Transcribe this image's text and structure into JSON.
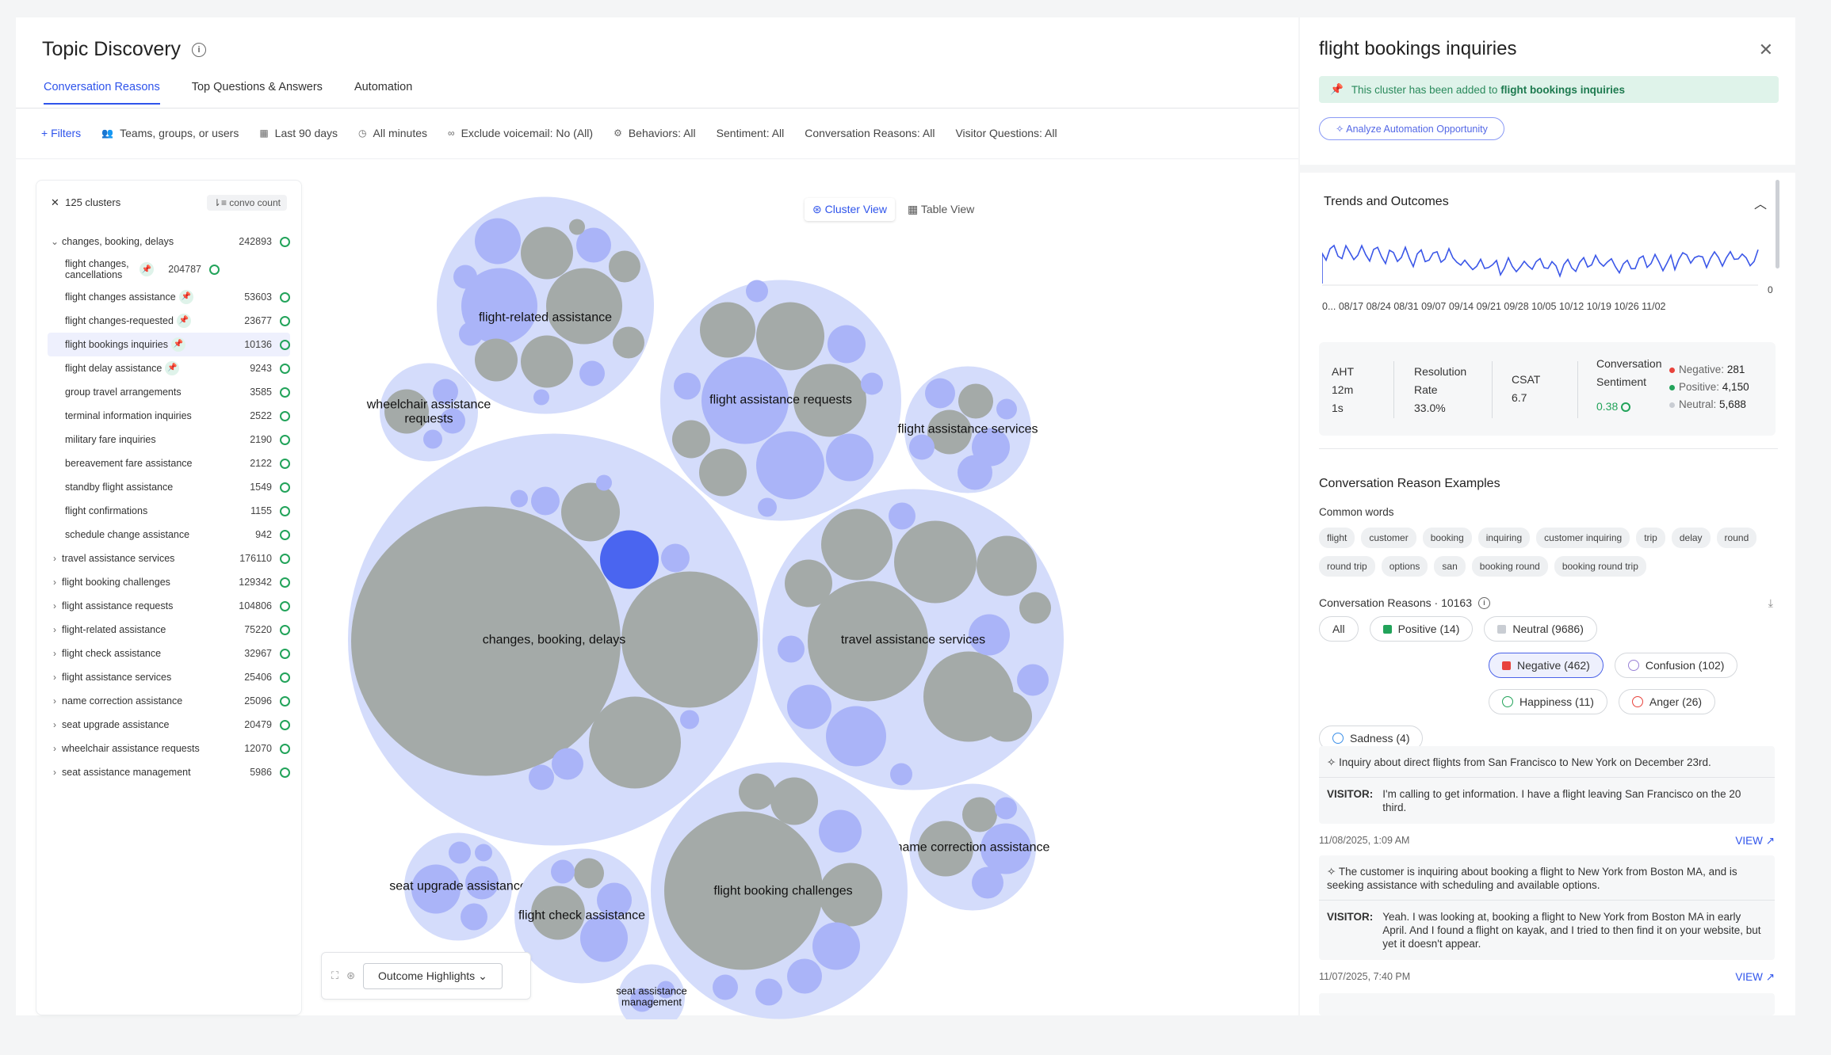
{
  "main": {
    "title": "Topic Discovery",
    "tabs": [
      "Conversation Reasons",
      "Top Questions & Answers",
      "Automation"
    ],
    "filters": {
      "add": "+ Filters",
      "teams": "Teams, groups, or users",
      "date": "Last 90 days",
      "minutes": "All minutes",
      "voicemail": "Exclude voicemail: No (All)",
      "behaviors": "Behaviors: All",
      "sentiment": "Sentiment: All",
      "reasons": "Conversation Reasons: All",
      "visitor": "Visitor Questions: All"
    }
  },
  "left_panel": {
    "clusters_label": "125 clusters",
    "sort_label": "convo count",
    "items": [
      {
        "label": "changes, booking, delays",
        "count": "242893"
      },
      {
        "label": "flight changes, cancellations",
        "count": "204787"
      },
      {
        "label": "flight changes assistance",
        "count": "53603"
      },
      {
        "label": "flight changes-requested",
        "count": "23677"
      },
      {
        "label": "flight bookings inquiries",
        "count": "10136"
      },
      {
        "label": "flight delay assistance",
        "count": "9243"
      },
      {
        "label": "group travel arrangements",
        "count": "3585"
      },
      {
        "label": "terminal information inquiries",
        "count": "2522"
      },
      {
        "label": "military fare inquiries",
        "count": "2190"
      },
      {
        "label": "bereavement fare assistance",
        "count": "2122"
      },
      {
        "label": "standby flight assistance",
        "count": "1549"
      },
      {
        "label": "flight confirmations",
        "count": "1155"
      },
      {
        "label": "schedule change assistance",
        "count": "942"
      },
      {
        "label": "travel assistance services",
        "count": "176110"
      },
      {
        "label": "flight booking challenges",
        "count": "129342"
      },
      {
        "label": "flight assistance requests",
        "count": "104806"
      },
      {
        "label": "flight-related assistance",
        "count": "75220"
      },
      {
        "label": "flight check assistance",
        "count": "32967"
      },
      {
        "label": "flight assistance services",
        "count": "25406"
      },
      {
        "label": "name correction assistance",
        "count": "25096"
      },
      {
        "label": "seat upgrade assistance",
        "count": "20479"
      },
      {
        "label": "wheelchair assistance requests",
        "count": "12070"
      },
      {
        "label": "seat assistance management",
        "count": "5986"
      }
    ]
  },
  "bubbles": {
    "view_cluster": "Cluster View",
    "view_table": "Table View",
    "labels": {
      "flight_related": "flight-related assistance",
      "wheelchair_1": "wheelchair assistance",
      "wheelchair_2": "requests",
      "fa_requests": "flight assistance requests",
      "fa_services": "flight assistance services",
      "changes": "changes, booking, delays",
      "travel": "travel assistance services",
      "name_corr": "name correction assistance",
      "seat_upgrade": "seat upgrade assistance",
      "check": "flight check assistance",
      "booking": "flight booking challenges",
      "seat_mgmt_1": "seat assistance",
      "seat_mgmt_2": "management"
    },
    "outcome_button": "Outcome Highlights"
  },
  "panel": {
    "title": "flight bookings inquiries",
    "banner_prefix": "This cluster has been added to",
    "banner_target": "flight bookings inquiries",
    "analyze_button": "Analyze Automation Opportunity",
    "trends_title": "Trends and Outcomes",
    "trend_zero": "0",
    "dates": "0... 08/17 08/24 08/31 09/07 09/14 09/21 09/28 10/05 10/12 10/19 10/26 11/02",
    "metrics": {
      "aht_label": "AHT",
      "aht_v1": "12m",
      "aht_v2": "1s",
      "res_label1": "Resolution",
      "res_label2": "Rate",
      "res_value": "33.0%",
      "csat_label": "CSAT",
      "csat_value": "6.7",
      "conv_label1": "Conversation",
      "conv_label2": "Sentiment",
      "conv_value": "0.38",
      "neg_label": "Negative:",
      "neg_value": "281",
      "pos_label": "Positive:",
      "pos_value": "4,150",
      "neu_label": "Neutral:",
      "neu_value": "5,688"
    },
    "examples_title": "Conversation Reason Examples",
    "common_words_title": "Common words",
    "common_words": [
      "flight",
      "customer",
      "booking",
      "inquiring",
      "customer inquiring",
      "trip",
      "delay",
      "round",
      "round trip",
      "options",
      "san",
      "booking round",
      "booking round trip"
    ],
    "reasons_title": "Conversation Reasons · 10163",
    "filters": {
      "all": "All",
      "positive": "Positive (14)",
      "neutral": "Neutral (9686)",
      "negative": "Negative (462)",
      "confusion": "Confusion (102)",
      "happiness": "Happiness (11)",
      "anger": "Anger (26)",
      "sadness": "Sadness (4)"
    },
    "examples": [
      {
        "summary": "Inquiry about direct flights from San Francisco to New York on December 23rd.",
        "visitor_label": "VISITOR:",
        "visitor": "I'm calling to get information. I have a flight leaving San Francisco on the 20 third.",
        "date": "11/08/2025, 1:09 AM",
        "view": "VIEW"
      },
      {
        "summary": "The customer is inquiring about booking a flight to New York from Boston MA, and is seeking assistance with scheduling and available options.",
        "visitor_label": "VISITOR:",
        "visitor": "Yeah. I was looking at, booking a flight to New York from Boston MA in early April. And I found a flight on kayak, and I tried to then find it on your website, but yet it doesn't appear.",
        "date": "11/07/2025, 7:40 PM",
        "view": "VIEW"
      }
    ],
    "colors": {
      "accent": "#2f54eb",
      "positive": "#22a35a",
      "negative": "#e8433c",
      "bubble_outer": "#d4dcfb",
      "bubble_inner": "#aab4f8",
      "bubble_gray": "#a4aaa8",
      "selected": "#4a65f0"
    }
  }
}
